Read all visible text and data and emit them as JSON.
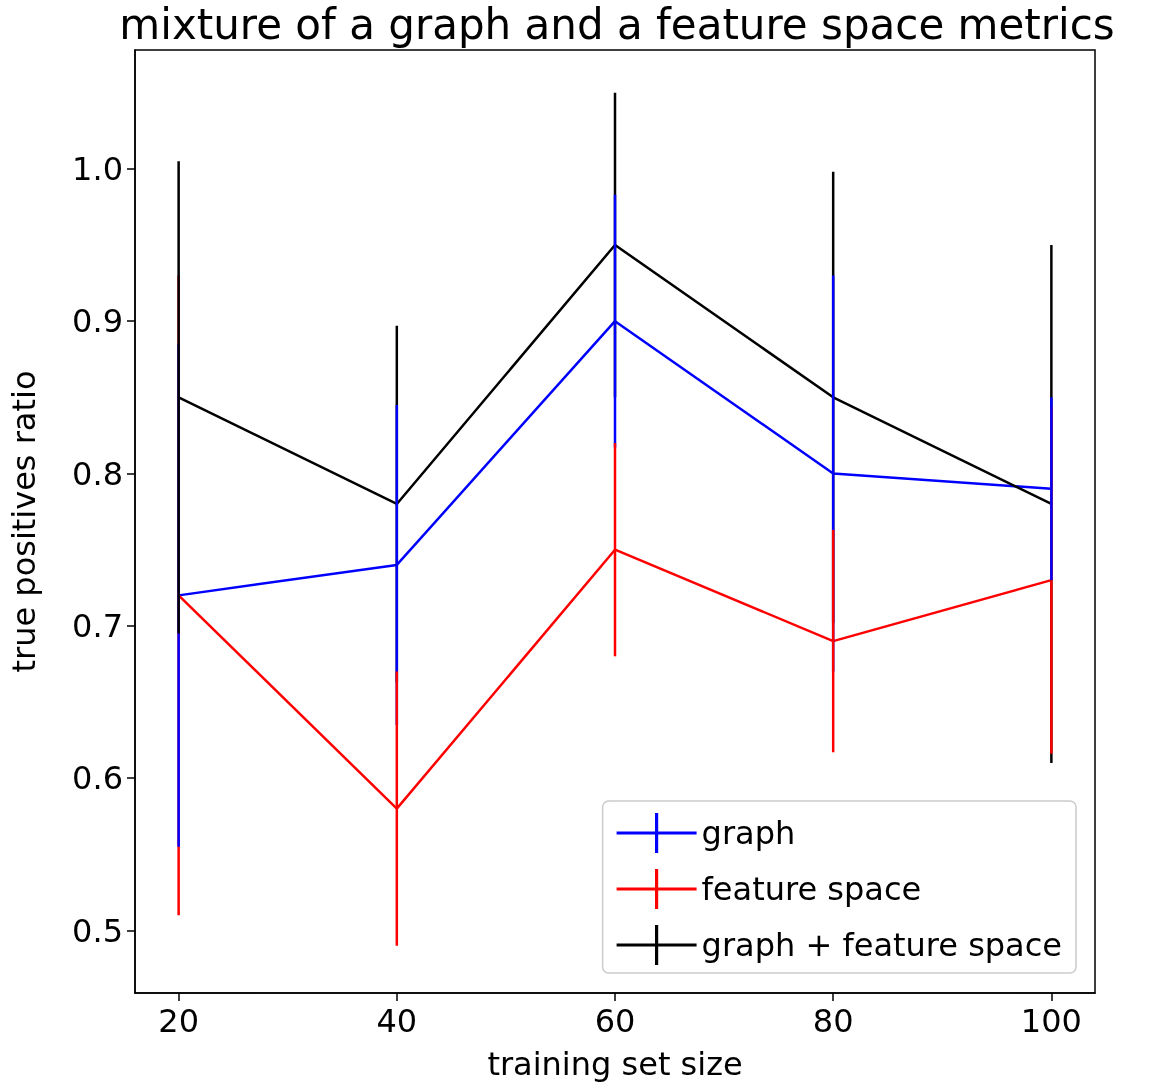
{
  "chart_data": {
    "type": "line",
    "title": "mixture of a graph and a feature space metrics",
    "xlabel": "training set size",
    "ylabel": "true positives ratio",
    "x": [
      20,
      40,
      60,
      80,
      100
    ],
    "series": [
      {
        "name": "graph",
        "color": "#0000ff",
        "values": [
          0.72,
          0.74,
          0.9,
          0.8,
          0.79
        ],
        "errors": [
          0.165,
          0.105,
          0.083,
          0.13,
          0.06
        ]
      },
      {
        "name": "feature space",
        "color": "#ff0000",
        "values": [
          0.72,
          0.58,
          0.75,
          0.69,
          0.73
        ],
        "errors": [
          0.21,
          0.09,
          0.07,
          0.073,
          0.114
        ]
      },
      {
        "name": "graph + feature space",
        "color": "#000000",
        "values": [
          0.85,
          0.78,
          0.95,
          0.85,
          0.78
        ],
        "errors": [
          0.155,
          0.117,
          0.1,
          0.148,
          0.17
        ]
      }
    ],
    "xlim": [
      16,
      104
    ],
    "xticks": [
      20,
      40,
      60,
      80,
      100
    ],
    "ylim": [
      0.459,
      1.078
    ],
    "yticks": [
      0.5,
      0.6,
      0.7,
      0.8,
      0.9,
      {
        "value": 1,
        "label": "1.0"
      }
    ],
    "grid": false,
    "legend": "bottom right",
    "marker": "none",
    "line_style": "solid"
  }
}
